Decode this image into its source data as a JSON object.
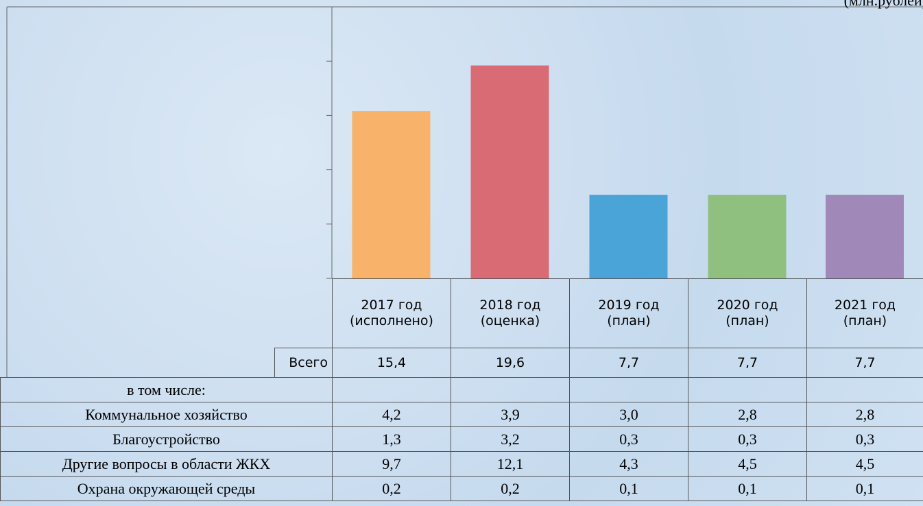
{
  "note": "(млн.рублей)",
  "chart_data": {
    "type": "bar",
    "categories": [
      "2017 год (исполнено)",
      "2018 год (оценка)",
      "2019 год (план)",
      "2020 год (план)",
      "2021 год (план)"
    ],
    "values": [
      15.4,
      19.6,
      7.7,
      7.7,
      7.7
    ],
    "value_labels": [
      "15,4",
      "19,6",
      "7,7",
      "7,7",
      "7,7"
    ],
    "colors": [
      "#f9b26a",
      "#d86b74",
      "#4aa4d8",
      "#90c080",
      "#a088b8"
    ],
    "ylim": [
      0,
      25
    ],
    "yticks": [
      0,
      5,
      10,
      15,
      20,
      25
    ],
    "total_label": "Всего"
  },
  "table": {
    "rows": [
      {
        "label": "в том числе:",
        "values": []
      },
      {
        "label": "Коммунальное хозяйство",
        "values": [
          "4,2",
          "3,9",
          "3,0",
          "2,8",
          "2,8"
        ]
      },
      {
        "label": "Благоустройство",
        "values": [
          "1,3",
          "3,2",
          "0,3",
          "0,3",
          "0,3"
        ]
      },
      {
        "label": "Другие вопросы в области ЖКХ",
        "values": [
          "9,7",
          "12,1",
          "4,3",
          "4,5",
          "4,5"
        ]
      },
      {
        "label": "Охрана окружающей среды",
        "values": [
          "0,2",
          "0,2",
          "0,1",
          "0,1",
          "0,1"
        ]
      }
    ]
  }
}
